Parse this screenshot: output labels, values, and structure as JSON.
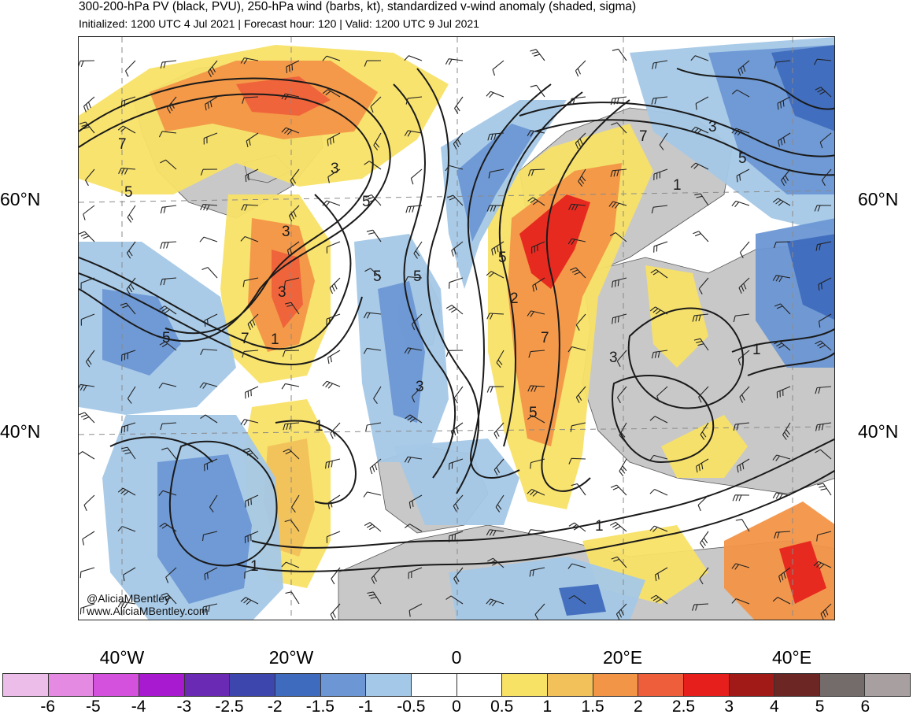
{
  "header": {
    "title": "300-200-hPa PV (black, PVU), 250-hPa wind (barbs, kt), standardized v-wind anomaly (shaded, sigma)",
    "subtitle": "Initialized: 1200 UTC 4 Jul 2021 | Forecast hour: 120 | Valid: 1200 UTC 9 Jul 2021"
  },
  "map": {
    "lat_labels": [
      "60°N",
      "40°N"
    ],
    "lon_labels": [
      "40°W",
      "20°W",
      "0",
      "20°E",
      "40°E"
    ],
    "contour_labels": [
      "7",
      "5",
      "3",
      "5",
      "3",
      "5",
      "1",
      "7",
      "3",
      "1",
      "5",
      "3",
      "1",
      "5",
      "7",
      "5",
      "2",
      "5",
      "7",
      "3",
      "5",
      "1",
      "1",
      "3",
      "1"
    ],
    "colors": {
      "land": "#c8c8c8",
      "ocean": "#ffffff",
      "contour": "#1a1a1a",
      "grid": "#8a8a8a"
    }
  },
  "credit": {
    "handle": "@AliciaMBentley",
    "website": "www.AliciaMBentley.com"
  },
  "colorbar": {
    "colors": [
      "#ebbde8",
      "#e58ae3",
      "#d451de",
      "#a81ad0",
      "#6a2ab4",
      "#3d46ac",
      "#3e6bbd",
      "#6c97d4",
      "#a4c8e7",
      "#ffffff",
      "#ffffff",
      "#f8e266",
      "#f2c15a",
      "#f39547",
      "#ef5e3b",
      "#e61e1c",
      "#a11a17",
      "#6c2623",
      "#746b6b",
      "#a8a0a0"
    ],
    "labels": [
      "-6",
      "-5",
      "-4",
      "-3",
      "-2.5",
      "-2",
      "-1.5",
      "-1",
      "-0.5",
      "0",
      "0.5",
      "1",
      "1.5",
      "2",
      "2.5",
      "3",
      "4",
      "5",
      "6"
    ]
  }
}
